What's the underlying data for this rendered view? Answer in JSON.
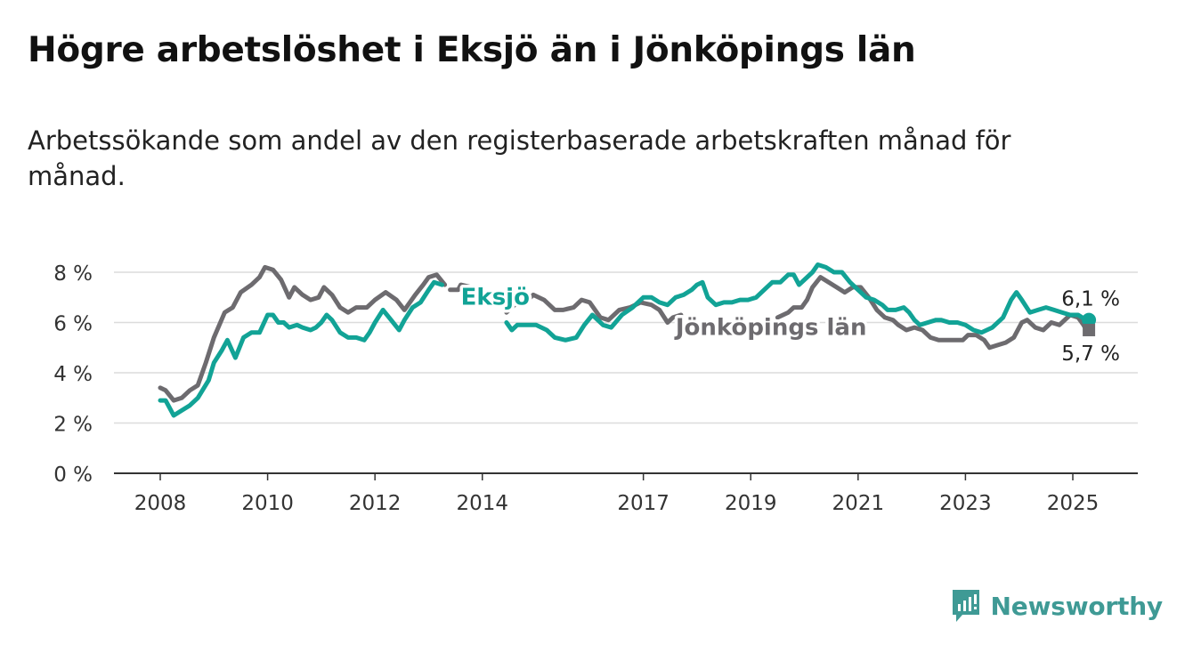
{
  "title": "Högre arbetslöshet i Eksjö än i Jönköpings län",
  "subtitle": "Arbetssökande som andel av den registerbaserade arbetskraften månad för månad.",
  "brand": {
    "name": "Newsworthy",
    "icon": "newsworthy-logo-icon",
    "color": "#3f9a95"
  },
  "colors": {
    "eksjo": "#12a396",
    "lan": "#6d6b6f",
    "grid": "#dcdcdc",
    "axis": "#333333"
  },
  "chart_data": {
    "type": "line",
    "ylim": [
      0,
      8
    ],
    "xlim": [
      2008,
      2025.75
    ],
    "y_ticks": [
      {
        "value": 0,
        "label": "0 %"
      },
      {
        "value": 2,
        "label": "2 %"
      },
      {
        "value": 4,
        "label": "4 %"
      },
      {
        "value": 6,
        "label": "6 %"
      },
      {
        "value": 8,
        "label": "8 %"
      }
    ],
    "x_ticks": [
      {
        "value": 2008,
        "label": "2008"
      },
      {
        "value": 2010,
        "label": "2010"
      },
      {
        "value": 2012,
        "label": "2012"
      },
      {
        "value": 2014,
        "label": "2014"
      },
      {
        "value": 2017,
        "label": "2017"
      },
      {
        "value": 2019,
        "label": "2019"
      },
      {
        "value": 2021,
        "label": "2021"
      },
      {
        "value": 2023,
        "label": "2023"
      },
      {
        "value": 2025,
        "label": "2025"
      }
    ],
    "grid": true,
    "series": [
      {
        "name": "Eksjö",
        "key": "eksjo",
        "end_label": "6,1 %",
        "points": [
          [
            2008.0,
            2.9
          ],
          [
            2008.1,
            2.9
          ],
          [
            2008.25,
            2.3
          ],
          [
            2008.4,
            2.5
          ],
          [
            2008.55,
            2.7
          ],
          [
            2008.7,
            3.0
          ],
          [
            2008.9,
            3.7
          ],
          [
            2009.0,
            4.4
          ],
          [
            2009.15,
            4.9
          ],
          [
            2009.25,
            5.3
          ],
          [
            2009.4,
            4.6
          ],
          [
            2009.55,
            5.4
          ],
          [
            2009.7,
            5.6
          ],
          [
            2009.85,
            5.6
          ],
          [
            2010.0,
            6.3
          ],
          [
            2010.1,
            6.3
          ],
          [
            2010.2,
            6.0
          ],
          [
            2010.3,
            6.0
          ],
          [
            2010.4,
            5.8
          ],
          [
            2010.55,
            5.9
          ],
          [
            2010.65,
            5.8
          ],
          [
            2010.8,
            5.7
          ],
          [
            2010.9,
            5.8
          ],
          [
            2011.0,
            6.0
          ],
          [
            2011.1,
            6.3
          ],
          [
            2011.2,
            6.1
          ],
          [
            2011.35,
            5.6
          ],
          [
            2011.5,
            5.4
          ],
          [
            2011.65,
            5.4
          ],
          [
            2011.8,
            5.3
          ],
          [
            2011.9,
            5.6
          ],
          [
            2012.0,
            6.0
          ],
          [
            2012.15,
            6.5
          ],
          [
            2012.3,
            6.1
          ],
          [
            2012.45,
            5.7
          ],
          [
            2012.55,
            6.1
          ],
          [
            2012.7,
            6.6
          ],
          [
            2012.85,
            6.8
          ],
          [
            2013.0,
            7.3
          ],
          [
            2013.1,
            7.6
          ],
          [
            2013.25,
            7.5
          ]
        ]
      },
      {
        "name": "Eksjö",
        "key": "eksjo",
        "points": [
          [
            2014.45,
            6.0
          ],
          [
            2014.55,
            5.7
          ],
          [
            2014.65,
            5.9
          ],
          [
            2014.8,
            5.9
          ],
          [
            2015.0,
            5.9
          ],
          [
            2015.2,
            5.7
          ],
          [
            2015.35,
            5.4
          ],
          [
            2015.55,
            5.3
          ],
          [
            2015.75,
            5.4
          ],
          [
            2015.9,
            5.9
          ],
          [
            2016.05,
            6.3
          ],
          [
            2016.25,
            5.9
          ],
          [
            2016.4,
            5.8
          ],
          [
            2016.6,
            6.3
          ],
          [
            2016.8,
            6.6
          ],
          [
            2017.0,
            7.0
          ],
          [
            2017.15,
            7.0
          ],
          [
            2017.3,
            6.8
          ],
          [
            2017.45,
            6.7
          ],
          [
            2017.6,
            7.0
          ],
          [
            2017.75,
            7.1
          ],
          [
            2017.9,
            7.3
          ],
          [
            2018.0,
            7.5
          ],
          [
            2018.1,
            7.6
          ],
          [
            2018.2,
            7.0
          ],
          [
            2018.35,
            6.7
          ],
          [
            2018.5,
            6.8
          ],
          [
            2018.65,
            6.8
          ],
          [
            2018.8,
            6.9
          ],
          [
            2018.95,
            6.9
          ],
          [
            2019.1,
            7.0
          ],
          [
            2019.25,
            7.3
          ],
          [
            2019.4,
            7.6
          ],
          [
            2019.55,
            7.6
          ],
          [
            2019.7,
            7.9
          ],
          [
            2019.8,
            7.9
          ],
          [
            2019.9,
            7.5
          ],
          [
            2020.0,
            7.7
          ],
          [
            2020.15,
            8.0
          ],
          [
            2020.25,
            8.3
          ],
          [
            2020.4,
            8.2
          ],
          [
            2020.55,
            8.0
          ],
          [
            2020.7,
            8.0
          ],
          [
            2020.85,
            7.6
          ],
          [
            2021.0,
            7.3
          ],
          [
            2021.15,
            7.0
          ],
          [
            2021.3,
            6.9
          ],
          [
            2021.45,
            6.7
          ],
          [
            2021.55,
            6.5
          ],
          [
            2021.7,
            6.5
          ],
          [
            2021.85,
            6.6
          ],
          [
            2021.95,
            6.4
          ],
          [
            2022.05,
            6.1
          ],
          [
            2022.15,
            5.9
          ],
          [
            2022.3,
            6.0
          ],
          [
            2022.45,
            6.1
          ],
          [
            2022.55,
            6.1
          ],
          [
            2022.7,
            6.0
          ],
          [
            2022.85,
            6.0
          ],
          [
            2023.0,
            5.9
          ],
          [
            2023.15,
            5.7
          ],
          [
            2023.3,
            5.6
          ],
          [
            2023.5,
            5.8
          ],
          [
            2023.7,
            6.2
          ],
          [
            2023.85,
            6.9
          ],
          [
            2023.95,
            7.2
          ],
          [
            2024.05,
            6.9
          ],
          [
            2024.2,
            6.4
          ],
          [
            2024.35,
            6.5
          ],
          [
            2024.5,
            6.6
          ],
          [
            2024.65,
            6.5
          ],
          [
            2024.8,
            6.4
          ],
          [
            2024.95,
            6.3
          ],
          [
            2025.1,
            6.3
          ],
          [
            2025.25,
            6.1
          ]
        ]
      },
      {
        "name": "Jönköpings län",
        "key": "lan",
        "end_label": "5,7 %",
        "points": [
          [
            2008.0,
            3.4
          ],
          [
            2008.1,
            3.3
          ],
          [
            2008.25,
            2.9
          ],
          [
            2008.4,
            3.0
          ],
          [
            2008.55,
            3.3
          ],
          [
            2008.7,
            3.5
          ],
          [
            2008.85,
            4.4
          ],
          [
            2009.0,
            5.4
          ],
          [
            2009.2,
            6.4
          ],
          [
            2009.35,
            6.6
          ],
          [
            2009.5,
            7.2
          ],
          [
            2009.7,
            7.5
          ],
          [
            2009.85,
            7.8
          ],
          [
            2009.95,
            8.2
          ],
          [
            2010.1,
            8.1
          ],
          [
            2010.25,
            7.7
          ],
          [
            2010.4,
            7.0
          ],
          [
            2010.5,
            7.4
          ],
          [
            2010.65,
            7.1
          ],
          [
            2010.8,
            6.9
          ],
          [
            2010.95,
            7.0
          ],
          [
            2011.05,
            7.4
          ],
          [
            2011.2,
            7.1
          ],
          [
            2011.35,
            6.6
          ],
          [
            2011.5,
            6.4
          ],
          [
            2011.65,
            6.6
          ],
          [
            2011.85,
            6.6
          ],
          [
            2012.0,
            6.9
          ],
          [
            2012.2,
            7.2
          ],
          [
            2012.4,
            6.9
          ],
          [
            2012.55,
            6.5
          ],
          [
            2012.75,
            7.1
          ],
          [
            2012.9,
            7.5
          ],
          [
            2013.0,
            7.8
          ],
          [
            2013.15,
            7.9
          ],
          [
            2013.3,
            7.5
          ]
        ]
      },
      {
        "name": "Jönköpings län",
        "key": "lan",
        "points": [
          [
            2013.4,
            7.3
          ],
          [
            2013.55,
            7.3
          ],
          [
            2013.6,
            7.5
          ],
          [
            2013.8,
            7.4
          ]
        ]
      },
      {
        "name": "Jönköpings län",
        "key": "lan",
        "points": [
          [
            2014.45,
            6.4
          ],
          [
            2014.6,
            6.7
          ],
          [
            2014.8,
            6.8
          ],
          [
            2014.95,
            7.1
          ],
          [
            2015.15,
            6.9
          ],
          [
            2015.35,
            6.5
          ],
          [
            2015.5,
            6.5
          ],
          [
            2015.7,
            6.6
          ],
          [
            2015.85,
            6.9
          ],
          [
            2016.0,
            6.8
          ],
          [
            2016.2,
            6.2
          ],
          [
            2016.35,
            6.1
          ],
          [
            2016.55,
            6.5
          ],
          [
            2016.75,
            6.6
          ],
          [
            2016.95,
            6.8
          ],
          [
            2017.15,
            6.7
          ],
          [
            2017.3,
            6.5
          ],
          [
            2017.45,
            6.0
          ],
          [
            2017.55,
            6.2
          ],
          [
            2017.7,
            6.3
          ]
        ]
      },
      {
        "name": "Jönköpings län",
        "key": "lan",
        "points": [
          [
            2019.5,
            6.2
          ],
          [
            2019.7,
            6.4
          ],
          [
            2019.8,
            6.6
          ],
          [
            2019.95,
            6.6
          ],
          [
            2020.05,
            6.9
          ],
          [
            2020.15,
            7.4
          ],
          [
            2020.3,
            7.8
          ],
          [
            2020.45,
            7.6
          ],
          [
            2020.6,
            7.4
          ],
          [
            2020.75,
            7.2
          ],
          [
            2020.9,
            7.4
          ],
          [
            2021.05,
            7.4
          ],
          [
            2021.2,
            7.0
          ],
          [
            2021.35,
            6.5
          ],
          [
            2021.5,
            6.2
          ],
          [
            2021.65,
            6.1
          ],
          [
            2021.75,
            5.9
          ],
          [
            2021.9,
            5.7
          ],
          [
            2022.05,
            5.8
          ],
          [
            2022.2,
            5.7
          ],
          [
            2022.35,
            5.4
          ],
          [
            2022.5,
            5.3
          ],
          [
            2022.75,
            5.3
          ],
          [
            2022.95,
            5.3
          ],
          [
            2023.05,
            5.5
          ],
          [
            2023.2,
            5.5
          ],
          [
            2023.35,
            5.3
          ],
          [
            2023.45,
            5.0
          ],
          [
            2023.6,
            5.1
          ],
          [
            2023.75,
            5.2
          ],
          [
            2023.9,
            5.4
          ],
          [
            2024.05,
            6.0
          ],
          [
            2024.15,
            6.1
          ],
          [
            2024.3,
            5.8
          ],
          [
            2024.45,
            5.7
          ],
          [
            2024.6,
            6.0
          ],
          [
            2024.75,
            5.9
          ],
          [
            2024.95,
            6.3
          ],
          [
            2025.1,
            6.2
          ],
          [
            2025.2,
            5.9
          ],
          [
            2025.25,
            5.7
          ],
          [
            2025.35,
            5.7
          ]
        ]
      }
    ],
    "labels": [
      {
        "key": "eksjo",
        "text": "Eksjö",
        "x": 2013.6,
        "y": 6.7
      },
      {
        "key": "lan",
        "text": "Jönköpings län",
        "x": 2017.6,
        "y": 5.5
      }
    ],
    "end_markers": [
      {
        "key": "eksjo",
        "x": 2025.3,
        "y": 6.1,
        "label": "6,1 %"
      },
      {
        "key": "lan",
        "x": 2025.3,
        "y": 5.7,
        "label": "5,7 %"
      }
    ]
  }
}
